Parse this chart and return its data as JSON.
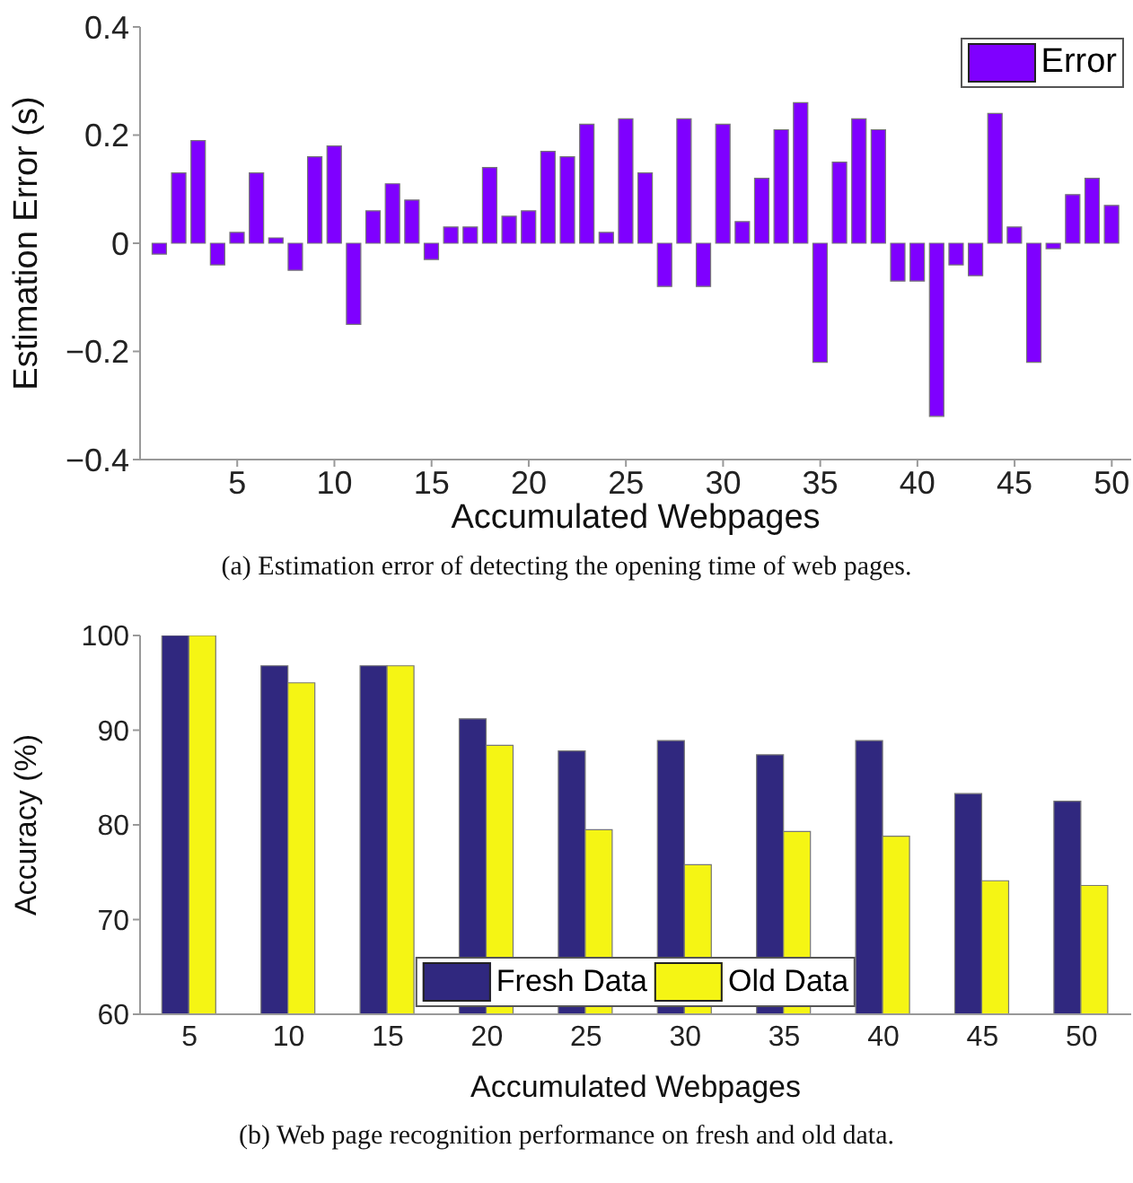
{
  "chart_data": [
    {
      "type": "bar",
      "xlabel": "Accumulated Webpages",
      "ylabel": "Estimation Error (s)",
      "x": [
        1,
        2,
        3,
        4,
        5,
        6,
        7,
        8,
        9,
        10,
        11,
        12,
        13,
        14,
        15,
        16,
        17,
        18,
        19,
        20,
        21,
        22,
        23,
        24,
        25,
        26,
        27,
        28,
        29,
        30,
        31,
        32,
        33,
        34,
        35,
        36,
        37,
        38,
        39,
        40,
        41,
        42,
        43,
        44,
        45,
        46,
        47,
        48,
        49,
        50
      ],
      "series": [
        {
          "name": "Error",
          "color": "#7f00ff",
          "values": [
            -0.02,
            0.13,
            0.19,
            -0.04,
            0.02,
            0.13,
            0.01,
            -0.05,
            0.16,
            0.18,
            -0.15,
            0.06,
            0.11,
            0.08,
            -0.03,
            0.03,
            0.03,
            0.14,
            0.05,
            0.06,
            0.17,
            0.16,
            0.22,
            0.02,
            0.23,
            0.13,
            -0.08,
            0.23,
            -0.08,
            0.22,
            0.04,
            0.12,
            0.21,
            0.26,
            -0.22,
            0.15,
            0.23,
            0.21,
            -0.07,
            -0.07,
            -0.32,
            -0.04,
            -0.06,
            0.24,
            0.03,
            -0.22,
            -0.01,
            0.09,
            0.12,
            0.07
          ]
        }
      ],
      "xlim": [
        0,
        51
      ],
      "xticks": [
        5,
        10,
        15,
        20,
        25,
        30,
        35,
        40,
        45,
        50
      ],
      "ylim": [
        -0.4,
        0.4
      ],
      "yticks": [
        {
          "value": -0.4,
          "label": "−0.4"
        },
        {
          "value": -0.2,
          "label": "−0.2"
        },
        0,
        0.2,
        0.4
      ],
      "grid": false,
      "legend": "top right",
      "annotations": [
        "(a)  Estimation error of detecting the opening time of web pages."
      ]
    },
    {
      "type": "bar",
      "xlabel": "Accumulated Webpages",
      "ylabel": "Accuracy (%)",
      "categories": [
        "5",
        "10",
        "15",
        "20",
        "25",
        "30",
        "35",
        "40",
        "45",
        "50"
      ],
      "series": [
        {
          "name": "Fresh Data",
          "color": "#30287f",
          "values": [
            100,
            96.8,
            96.8,
            91.2,
            87.8,
            88.9,
            87.4,
            88.9,
            83.3,
            82.5
          ]
        },
        {
          "name": "Old Data",
          "color": "#f5f514",
          "values": [
            100,
            95.0,
            96.8,
            88.4,
            79.5,
            75.8,
            79.3,
            78.8,
            74.1,
            73.6
          ]
        }
      ],
      "ylim": [
        60,
        100
      ],
      "yticks": [
        60,
        70,
        80,
        90,
        100
      ],
      "grid": false,
      "legend": "bottom",
      "annotations": [
        "(b)  Web page recognition performance on fresh and old data."
      ]
    }
  ]
}
